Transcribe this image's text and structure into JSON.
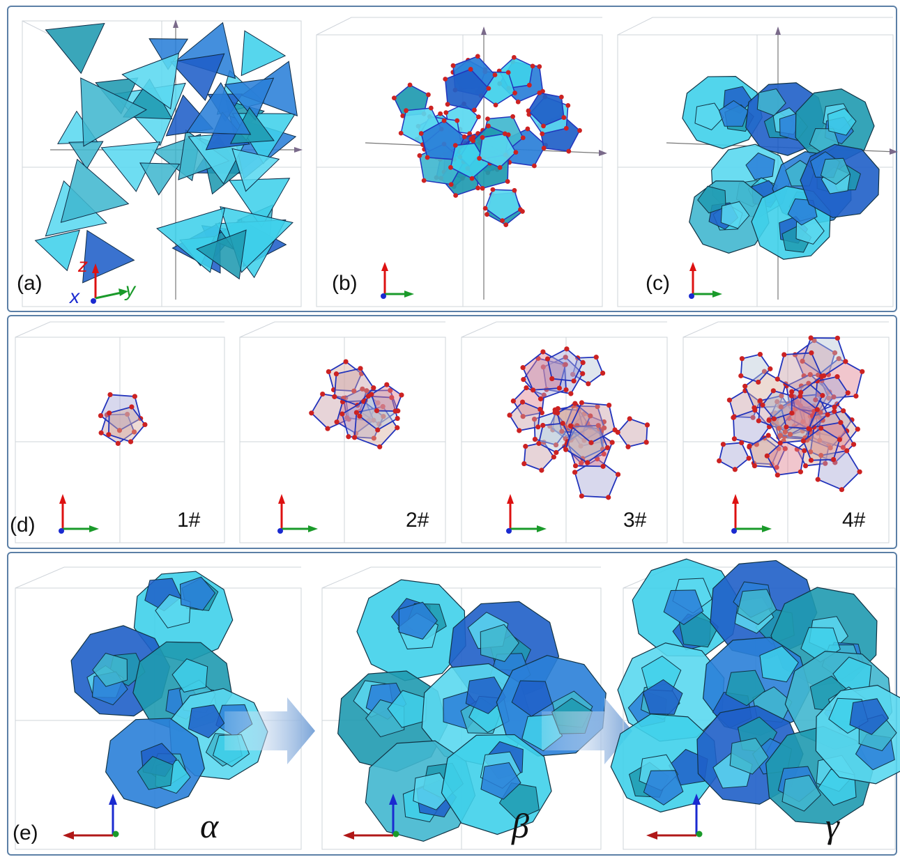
{
  "panels": {
    "a": {
      "label": "(a)"
    },
    "b": {
      "label": "(b)"
    },
    "c": {
      "label": "(c)"
    },
    "d": {
      "label": "(d)"
    },
    "e": {
      "label": "(e)"
    }
  },
  "axis_labels": {
    "z": "z",
    "x": "x",
    "y": "y"
  },
  "clusters": [
    {
      "id": "1#"
    },
    {
      "id": "2#"
    },
    {
      "id": "3#"
    },
    {
      "id": "4#"
    }
  ],
  "phases": [
    {
      "symbol": "α"
    },
    {
      "symbol": "β"
    },
    {
      "symbol": "γ"
    }
  ],
  "colors": {
    "frame_border": "#5b7fa6",
    "cyan": "#3fd0ea",
    "blue": "#1f5fc8",
    "teal": "#1f9ab0",
    "atom": "#cc2222",
    "bond": "#2233bb",
    "z_axis": "#d11",
    "y_axis": "#1a9a2a",
    "x_axis": "#1a2ad0"
  }
}
